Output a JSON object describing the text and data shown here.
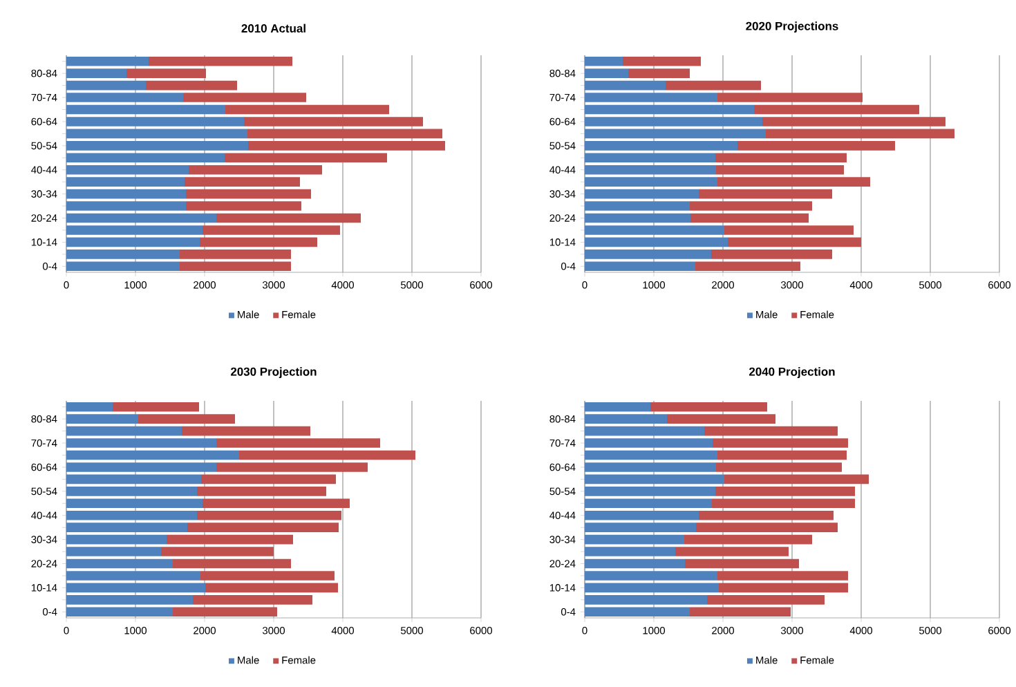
{
  "chart_data": [
    {
      "type": "bar",
      "orientation": "horizontal",
      "stacked": true,
      "title": "2010 Actual",
      "categories": [
        null,
        "80-84",
        null,
        "70-74",
        null,
        "60-64",
        null,
        "50-54",
        null,
        "40-44",
        null,
        "30-34",
        null,
        "20-24",
        null,
        "10-14",
        null,
        "0-4"
      ],
      "series": [
        {
          "name": "Male",
          "color": "#4f81bd",
          "values": [
            1190,
            870,
            1150,
            1690,
            2300,
            2570,
            2620,
            2630,
            2290,
            1770,
            1710,
            1730,
            1730,
            2170,
            1970,
            1930,
            1640,
            1640
          ]
        },
        {
          "name": "Female",
          "color": "#c0504d",
          "values": [
            2080,
            1150,
            1320,
            1780,
            2370,
            2590,
            2820,
            2850,
            2350,
            1930,
            1670,
            1810,
            1670,
            2090,
            1990,
            1700,
            1610,
            1610
          ]
        }
      ],
      "xlim": [
        0,
        6000
      ],
      "xticks": [
        0,
        1000,
        2000,
        3000,
        4000,
        5000,
        6000
      ],
      "grid": "x",
      "legend": "bottom"
    },
    {
      "type": "bar",
      "orientation": "horizontal",
      "stacked": true,
      "title": "2020 Projections",
      "categories": [
        null,
        "80-84",
        null,
        "70-74",
        null,
        "60-64",
        null,
        "50-54",
        null,
        "40-44",
        null,
        "30-34",
        null,
        "20-24",
        null,
        "10-14",
        null,
        "0-4"
      ],
      "series": [
        {
          "name": "Male",
          "color": "#4f81bd",
          "values": [
            550,
            630,
            1170,
            1920,
            2450,
            2570,
            2620,
            2210,
            1890,
            1900,
            1920,
            1650,
            1520,
            1530,
            2020,
            2070,
            1830,
            1600
          ]
        },
        {
          "name": "Female",
          "color": "#c0504d",
          "values": [
            1130,
            890,
            1380,
            2100,
            2390,
            2650,
            2730,
            2280,
            1900,
            1850,
            2210,
            1930,
            1770,
            1710,
            1870,
            1930,
            1750,
            1520
          ]
        }
      ],
      "xlim": [
        0,
        6000
      ],
      "xticks": [
        0,
        1000,
        2000,
        3000,
        4000,
        5000,
        6000
      ],
      "grid": "x",
      "legend": "bottom"
    },
    {
      "type": "bar",
      "orientation": "horizontal",
      "stacked": true,
      "title": "2030 Projection",
      "categories": [
        null,
        "80-84",
        null,
        "70-74",
        null,
        "60-64",
        null,
        "50-54",
        null,
        "40-44",
        null,
        "30-34",
        null,
        "20-24",
        null,
        "10-14",
        null,
        "0-4"
      ],
      "series": [
        {
          "name": "Male",
          "color": "#4f81bd",
          "values": [
            670,
            1040,
            1670,
            2170,
            2500,
            2170,
            1950,
            1890,
            1970,
            1890,
            1750,
            1450,
            1370,
            1540,
            1940,
            2010,
            1830,
            1540
          ]
        },
        {
          "name": "Female",
          "color": "#c0504d",
          "values": [
            1250,
            1400,
            1860,
            2370,
            2550,
            2190,
            1950,
            1870,
            2130,
            2090,
            2190,
            1830,
            1630,
            1710,
            1940,
            1920,
            1730,
            1510
          ]
        }
      ],
      "xlim": [
        0,
        6000
      ],
      "xticks": [
        0,
        1000,
        2000,
        3000,
        4000,
        5000,
        6000
      ],
      "grid": "x",
      "legend": "bottom"
    },
    {
      "type": "bar",
      "orientation": "horizontal",
      "stacked": true,
      "title": "2040 Projection",
      "categories": [
        null,
        "80-84",
        null,
        "70-74",
        null,
        "60-64",
        null,
        "50-54",
        null,
        "40-44",
        null,
        "30-34",
        null,
        "20-24",
        null,
        "10-14",
        null,
        "0-4"
      ],
      "series": [
        {
          "name": "Male",
          "color": "#4f81bd",
          "values": [
            950,
            1190,
            1730,
            1850,
            1920,
            1900,
            2020,
            1890,
            1840,
            1650,
            1610,
            1440,
            1310,
            1450,
            1920,
            1940,
            1770,
            1520
          ]
        },
        {
          "name": "Female",
          "color": "#c0504d",
          "values": [
            1690,
            1570,
            1930,
            1960,
            1870,
            1820,
            2090,
            2020,
            2070,
            1950,
            2050,
            1850,
            1640,
            1650,
            1890,
            1870,
            1700,
            1460
          ]
        }
      ],
      "xlim": [
        0,
        6000
      ],
      "xticks": [
        0,
        1000,
        2000,
        3000,
        4000,
        5000,
        6000
      ],
      "grid": "x",
      "legend": "bottom"
    }
  ]
}
